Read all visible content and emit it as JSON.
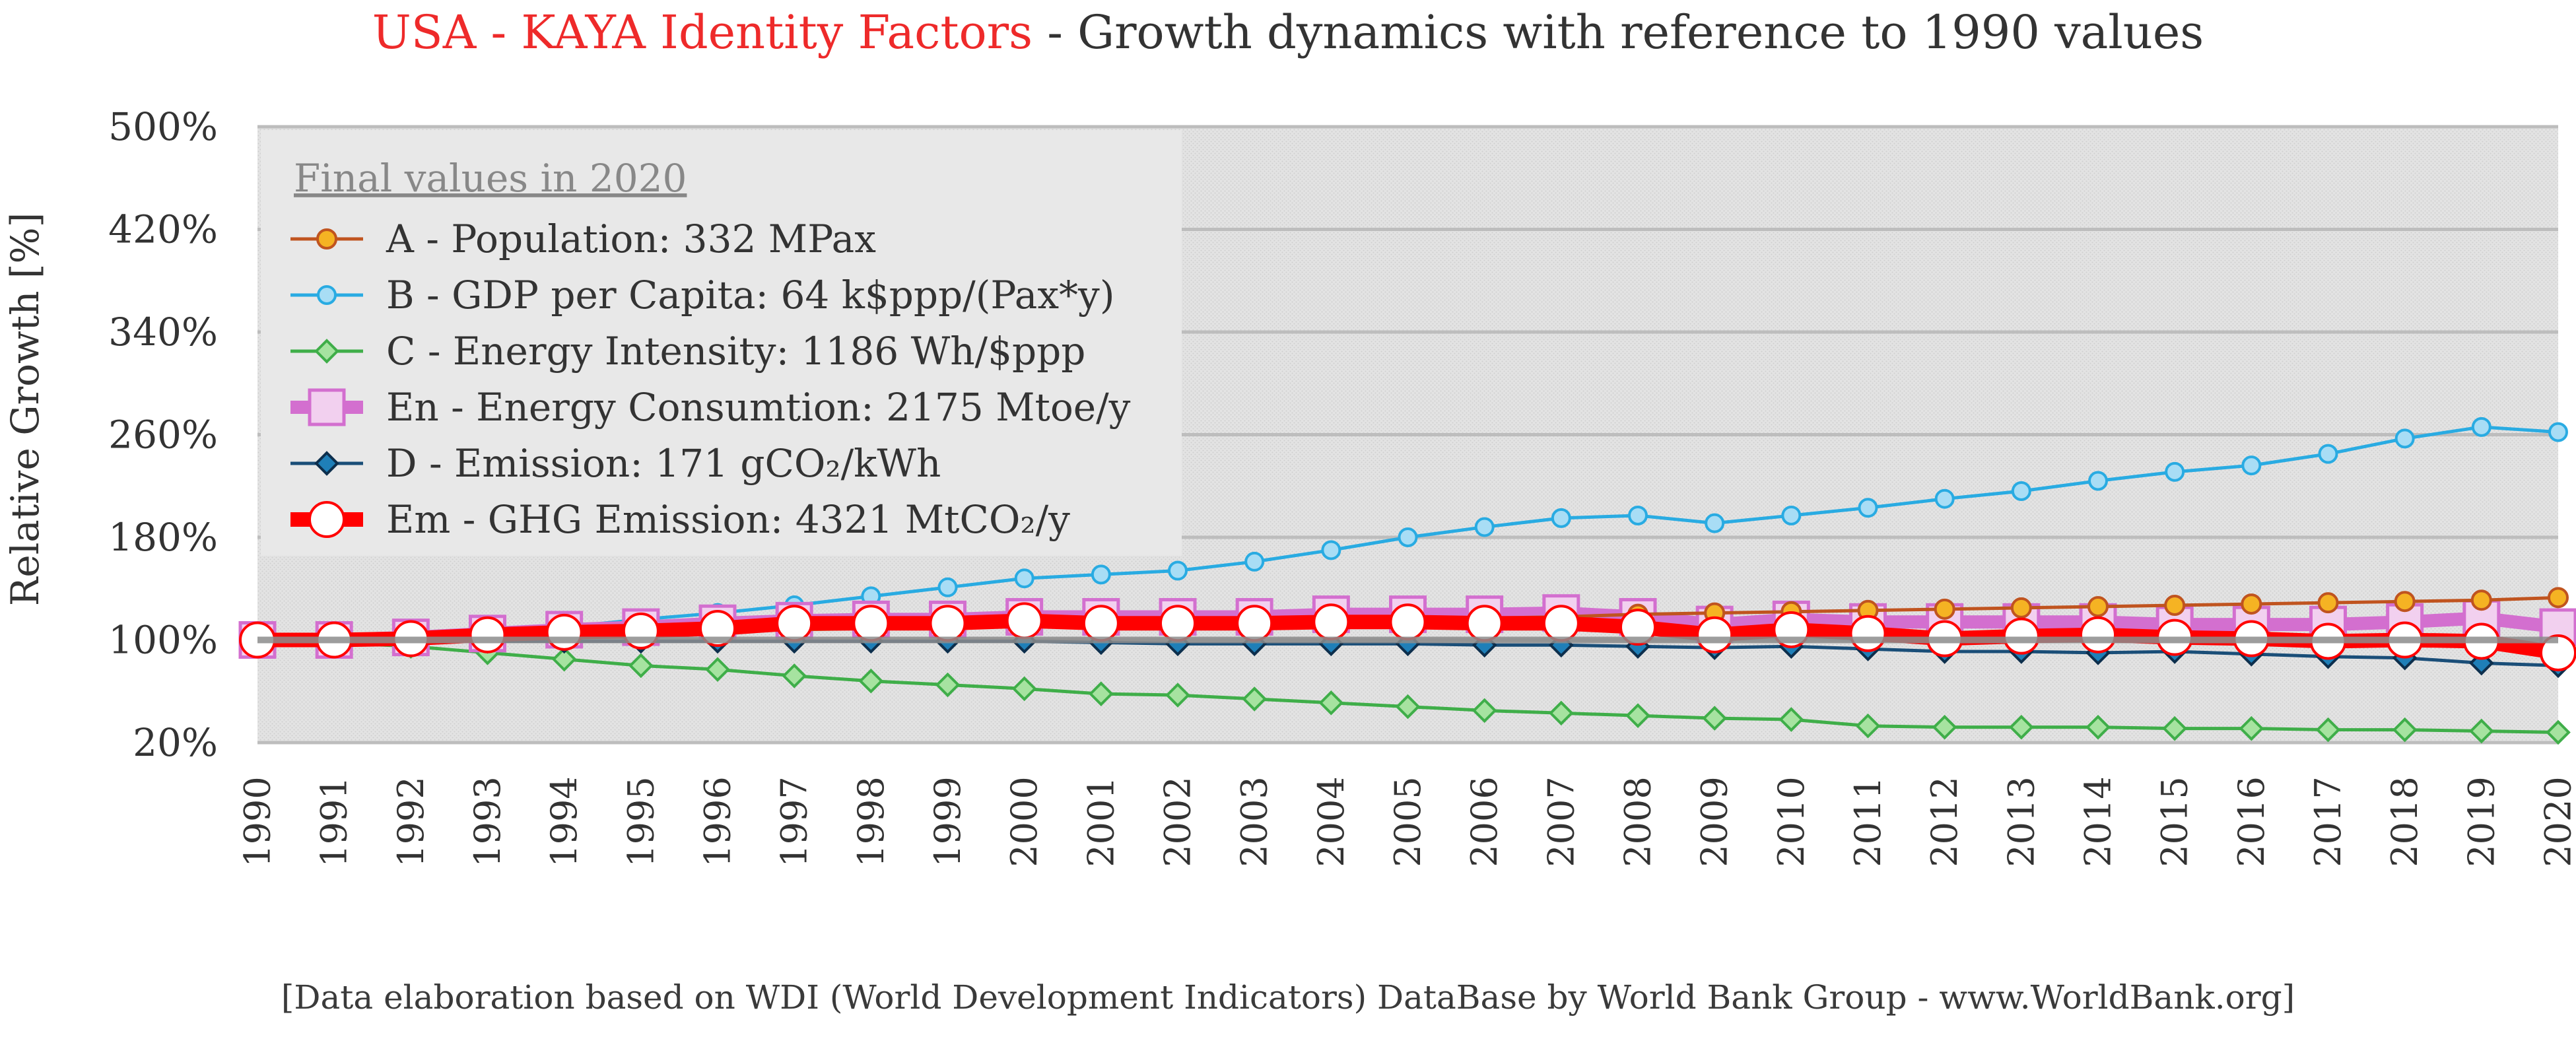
{
  "title": {
    "part1": "USA - KAYA Identity Factors",
    "part2": " - Growth dynamics with reference to 1990 values"
  },
  "footer": "[Data elaboration based on WDI (World Development Indicators) DataBase by World Bank Group - www.WorldBank.org]",
  "chart_data": {
    "type": "line",
    "ylabel": "Relative Growth [%]",
    "yticks": [
      "500%",
      "420%",
      "340%",
      "260%",
      "180%",
      "100%",
      "20%"
    ],
    "ylim": [
      20,
      500
    ],
    "grid": true,
    "legend_placement": "top-left",
    "legend_title": "Final values in 2020",
    "x": [
      "1990",
      "1991",
      "1992",
      "1993",
      "1994",
      "1995",
      "1996",
      "1997",
      "1998",
      "1999",
      "2000",
      "2001",
      "2002",
      "2003",
      "2004",
      "2005",
      "2006",
      "2007",
      "2008",
      "2009",
      "2010",
      "2011",
      "2012",
      "2013",
      "2014",
      "2015",
      "2016",
      "2017",
      "2018",
      "2019",
      "2020"
    ],
    "series": [
      {
        "name": "A - Population: 332 MPax",
        "color": "#c0541f",
        "marker": "circle",
        "markerFill": "#f5b323",
        "width": 5,
        "markerSize": 14,
        "values": [
          100,
          101,
          102,
          104,
          105,
          106,
          107,
          108,
          109,
          110,
          111,
          112,
          113,
          114,
          115,
          116,
          117,
          118,
          120,
          121,
          122,
          123,
          124,
          125,
          126,
          127,
          128,
          129,
          130,
          131,
          133
        ]
      },
      {
        "name": "B - GDP per Capita: 64 k$ppp/(Pax*y)",
        "color": "#29abe2",
        "marker": "circle",
        "markerFill": "#a8ddf5",
        "width": 5,
        "markerSize": 13,
        "values": [
          100,
          99,
          102,
          105,
          110,
          116,
          121,
          127,
          134,
          141,
          148,
          151,
          154,
          161,
          170,
          180,
          188,
          195,
          197,
          191,
          197,
          203,
          210,
          216,
          224,
          231,
          236,
          245,
          257,
          266,
          262
        ]
      },
      {
        "name": "C - Energy Intensity: 1186 Wh/$ppp",
        "color": "#3fae49",
        "marker": "diamond",
        "markerFill": "#a6e3a0",
        "width": 5,
        "markerSize": 16,
        "values": [
          100,
          98,
          95,
          90,
          85,
          80,
          77,
          72,
          68,
          65,
          62,
          58,
          57,
          54,
          51,
          48,
          45,
          43,
          41,
          39,
          38,
          33,
          32,
          32,
          32,
          31,
          31,
          30,
          30,
          29,
          28
        ]
      },
      {
        "name": "En - Energy Consumtion: 2175 Mtoe/y",
        "color": "#d36fcf",
        "marker": "square",
        "markerFill": "#f2d0ef",
        "width": 20,
        "markerSize": 26,
        "values": [
          100,
          100,
          102,
          105,
          108,
          110,
          113,
          115,
          116,
          116,
          118,
          118,
          118,
          118,
          120,
          120,
          120,
          121,
          118,
          112,
          116,
          114,
          114,
          114,
          114,
          112,
          112,
          112,
          114,
          117,
          110
        ]
      },
      {
        "name": "D - Emission: 171 gCO₂/kWh",
        "color": "#1a4e78",
        "marker": "diamond",
        "markerFill": "#1f7fb8",
        "width": 5,
        "markerSize": 16,
        "values": [
          100,
          100,
          99,
          99,
          99,
          99,
          99,
          99,
          99,
          99,
          99,
          98,
          97,
          97,
          97,
          97,
          96,
          96,
          95,
          94,
          95,
          93,
          91,
          91,
          90,
          91,
          89,
          87,
          86,
          82,
          80
        ]
      },
      {
        "name": "Em - GHG Emission: 4321 MtCO₂/y",
        "color": "#ff0000",
        "marker": "circle",
        "markerFill": "#ffffff",
        "width": 22,
        "markerSize": 26,
        "values": [
          100,
          100,
          101,
          104,
          106,
          107,
          109,
          113,
          113,
          113,
          115,
          113,
          113,
          113,
          114,
          114,
          113,
          113,
          110,
          104,
          108,
          105,
          101,
          103,
          104,
          102,
          101,
          99,
          100,
          99,
          90
        ]
      }
    ],
    "reference_line": {
      "color": "#8c8c8c",
      "value": 100
    }
  }
}
